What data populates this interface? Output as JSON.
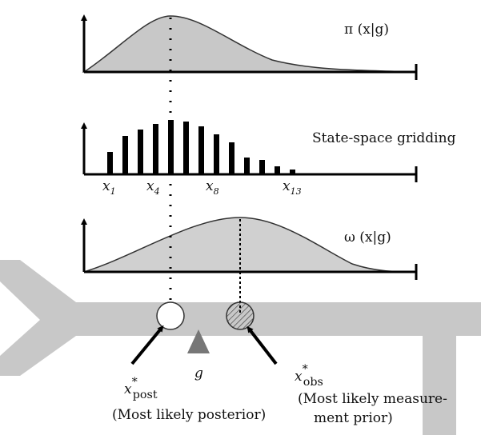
{
  "top_plot": {
    "label": "π (x|g)"
  },
  "middle_plot": {
    "label": "State-space gridding",
    "grid_labels": [
      {
        "base": "x",
        "sub": "1"
      },
      {
        "base": "x",
        "sub": "4"
      },
      {
        "base": "x",
        "sub": "8"
      },
      {
        "base": "x",
        "sub": "13"
      }
    ]
  },
  "bottom_plot": {
    "label": "ω (x|g)"
  },
  "road": {
    "goal_label": "g",
    "posterior": {
      "base": "x",
      "sup": "*",
      "sub": "post",
      "caption": "(Most likely posterior)"
    },
    "observation": {
      "base": "x",
      "sup": "*",
      "sub": "obs",
      "caption_lines": [
        "(Most likely measure-",
        "ment prior)"
      ]
    }
  }
}
